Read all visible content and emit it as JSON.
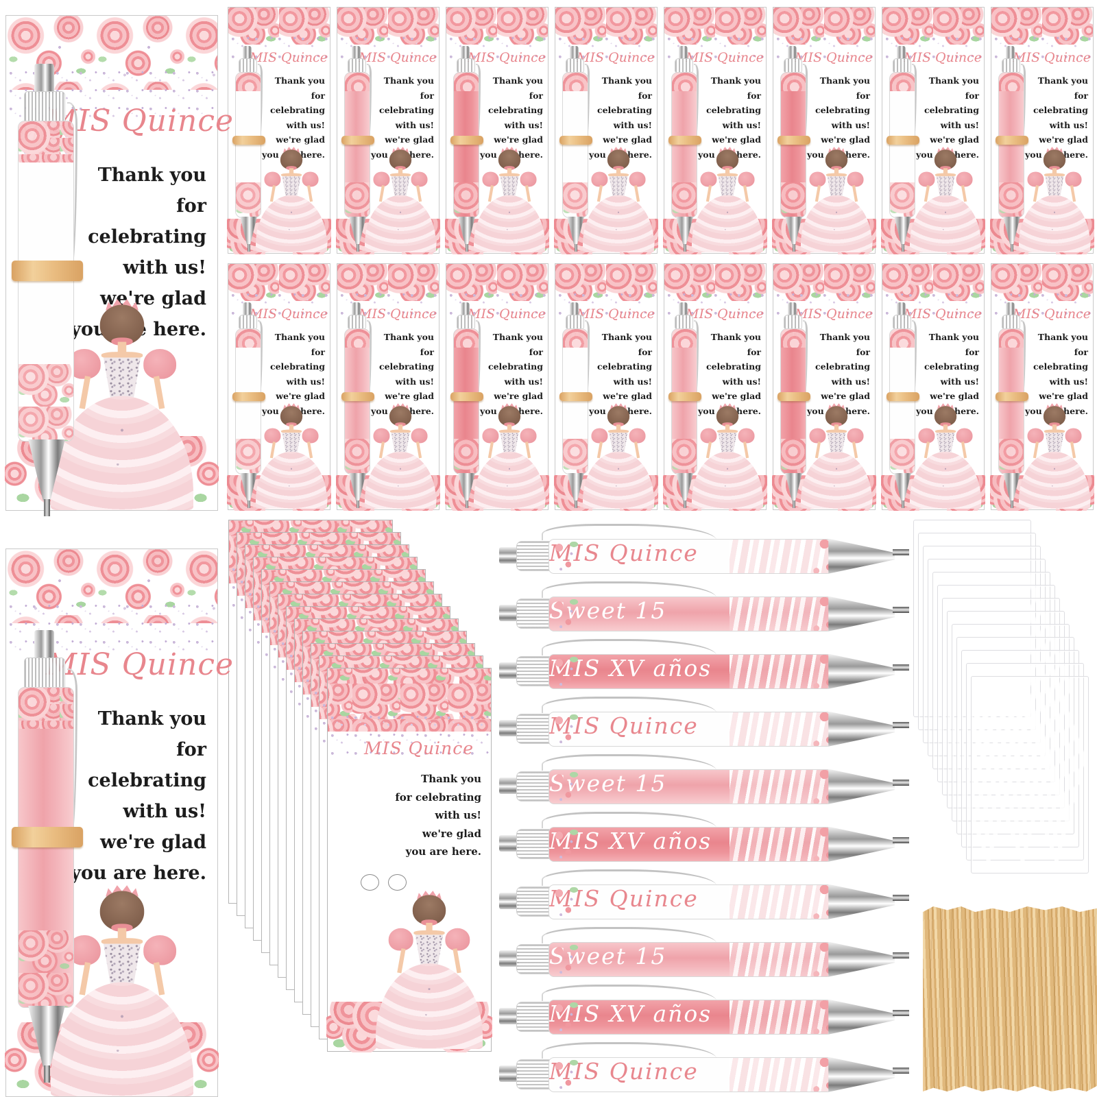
{
  "texts": {
    "title": "MIS Quince",
    "thanks": [
      "Thank you",
      "for celebrating",
      "with us!",
      "we're glad",
      "you are here."
    ]
  },
  "pen_labels": {
    "quince": "MIS Quince",
    "sweet": "Sweet 15",
    "anos": "MIS XV años"
  },
  "big_cards": [
    {
      "pen_label": "MIS Quince",
      "pen_style": "white",
      "variant": "upper"
    },
    {
      "pen_label": "Sweet 15",
      "pen_style": "pink",
      "variant": "tall"
    }
  ],
  "small_cards": [
    {
      "pen_label": "MIS Quince",
      "pen_style": "white"
    },
    {
      "pen_label": "Sweet 15",
      "pen_style": "pink"
    },
    {
      "pen_label": "MIS XV años",
      "pen_style": "dark"
    },
    {
      "pen_label": "MIS Quince",
      "pen_style": "white"
    },
    {
      "pen_label": "Sweet 15",
      "pen_style": "pink"
    },
    {
      "pen_label": "MIS XV años",
      "pen_style": "dark"
    },
    {
      "pen_label": "MIS Quince",
      "pen_style": "white"
    },
    {
      "pen_label": "Sweet 15",
      "pen_style": "pink"
    },
    {
      "pen_label": "MIS Quince",
      "pen_style": "white"
    },
    {
      "pen_label": "Sweet 15",
      "pen_style": "pink"
    },
    {
      "pen_label": "MIS XV años",
      "pen_style": "dark"
    },
    {
      "pen_label": "MIS Quince",
      "pen_style": "white"
    },
    {
      "pen_label": "Sweet 15",
      "pen_style": "pink"
    },
    {
      "pen_label": "MIS XV años",
      "pen_style": "dark"
    },
    {
      "pen_label": "MIS Quince",
      "pen_style": "white"
    },
    {
      "pen_label": "Sweet 15",
      "pen_style": "pink"
    }
  ],
  "pens": [
    {
      "label": "MIS Quince",
      "style": "white"
    },
    {
      "label": "Sweet 15",
      "style": "pink"
    },
    {
      "label": "MIS XV años",
      "style": "dark"
    },
    {
      "label": "MIS Quince",
      "style": "white"
    },
    {
      "label": "Sweet 15",
      "style": "pink"
    },
    {
      "label": "MIS XV años",
      "style": "dark"
    },
    {
      "label": "MIS Quince",
      "style": "white"
    },
    {
      "label": "Sweet 15",
      "style": "pink"
    },
    {
      "label": "MIS XV años",
      "style": "dark"
    },
    {
      "label": "MIS Quince",
      "style": "white"
    }
  ],
  "fan": {
    "back_count": 12
  },
  "bags": {
    "count": 13
  },
  "colors": {
    "title_pink": "#e8868d",
    "text_black": "#1c1c1c",
    "rose_pink": "#f2989f",
    "rose_light": "#f9ced1",
    "leaf_green": "#aed7a6",
    "sparkle_lavender": "#c8b5d8",
    "pen_barrel_pink": "#efa3aa",
    "pen_barrel_dark_pink": "#e9858d",
    "rubber_band_tan": "#e9bc80",
    "metal_silver": "#bcbcbc",
    "twist_tie_tan": "#e0b87c",
    "bag_white": "#f2f2f4"
  }
}
